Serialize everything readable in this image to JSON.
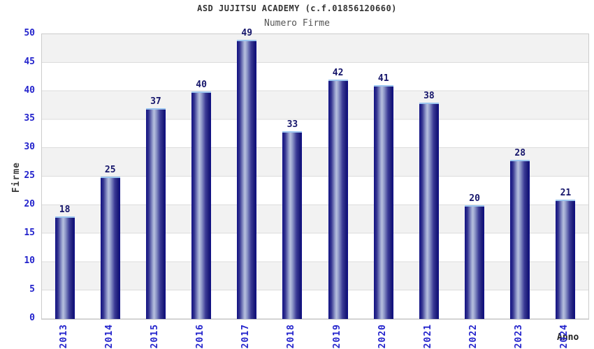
{
  "header": {
    "title": "ASD JUJITSU ACADEMY (c.f.01856120660)",
    "subtitle": "Numero Firme"
  },
  "chart_data": {
    "type": "bar",
    "title": "ASD JUJITSU ACADEMY (c.f.01856120660)",
    "subtitle": "Numero Firme",
    "categories": [
      "2013",
      "2014",
      "2015",
      "2016",
      "2017",
      "2018",
      "2019",
      "2020",
      "2021",
      "2022",
      "2023",
      "2024"
    ],
    "values": [
      18,
      25,
      37,
      40,
      49,
      33,
      42,
      41,
      38,
      20,
      28,
      21
    ],
    "xlabel": "Anno",
    "ylabel": "Firme",
    "ylim": [
      0,
      50
    ],
    "yticks": [
      0,
      5,
      10,
      15,
      20,
      25,
      30,
      35,
      40,
      45,
      50
    ],
    "legend": "none",
    "grid": "horizontal lines every 5 with alternating gray/white bands",
    "colors": {
      "bar_dark": "#16167d",
      "bar_highlight": "#b7c0de",
      "bar_top_cap": "#9cc6f0",
      "tick_label": "#2323cc",
      "value_label": "#16166b",
      "title_text": "#333333",
      "subtitle_text": "#555555",
      "axis_title_text": "#3c3c3c",
      "band_gray": "#f2f2f2",
      "grid_line": "#dcdcdc",
      "plot_border": "#cccccc"
    }
  }
}
